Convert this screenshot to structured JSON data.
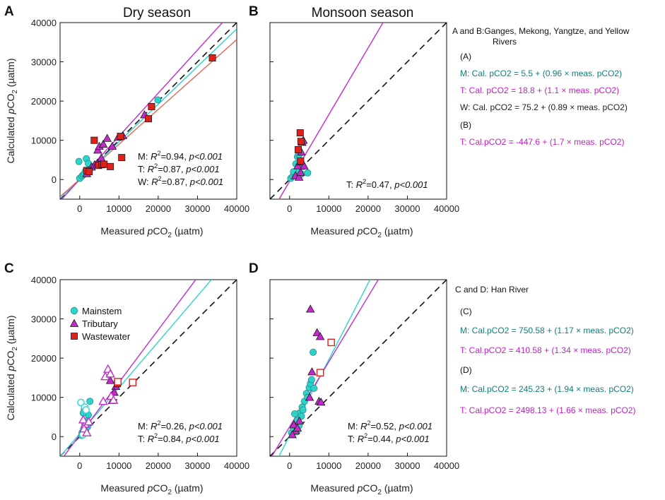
{
  "colors": {
    "mainstem": "#2dd4cc",
    "tributary": "#c32ccb",
    "wastewater": "#e0201b",
    "mainstem_text": "#0f7f77",
    "tributary_text": "#c21fc6",
    "waste_line": "#e06a5a",
    "one_to_one": "#111111"
  },
  "legend": {
    "mainstem": "Mainstem",
    "tributary": "Tributary",
    "wastewater": "Wastewater"
  },
  "chart_data": [
    {
      "id": "A",
      "type": "scatter",
      "panel_label": "A",
      "title": "Dry season",
      "xlabel": "Measured pCO2 (µatm)",
      "ylabel": "Calculated pCO2 (µatm)",
      "xlim": [
        -5000,
        40000
      ],
      "ylim": [
        -5000,
        40000
      ],
      "x_ticks": [
        "0",
        "10000",
        "20000",
        "30000",
        "40000"
      ],
      "y_ticks": [
        "0",
        "10000",
        "20000",
        "30000",
        "40000"
      ],
      "one_to_one": true,
      "regressions": [
        {
          "group": "mainstem",
          "intercept": 5.5,
          "slope": 0.96
        },
        {
          "group": "tributary",
          "intercept": 18.8,
          "slope": 1.1
        },
        {
          "group": "wastewater",
          "intercept": 75.2,
          "slope": 0.89
        }
      ],
      "stats": [
        {
          "group": "M",
          "r2": "0.94",
          "p": "p<0.001"
        },
        {
          "group": "T",
          "r2": "0.87",
          "p": "p<0.001"
        },
        {
          "group": "W",
          "r2": "0.87",
          "p": "p<0.001"
        }
      ],
      "series": [
        {
          "name": "Mainstem",
          "marker": "circle",
          "filled": true,
          "points": [
            [
              0,
              300
            ],
            [
              600,
              900
            ],
            [
              900,
              1200
            ],
            [
              1500,
              2200
            ],
            [
              2000,
              1700
            ],
            [
              2600,
              3000
            ],
            [
              1200,
              1500
            ],
            [
              -200,
              4600
            ],
            [
              1700,
              5300
            ],
            [
              2200,
              4100
            ],
            [
              19900,
              20300
            ],
            [
              3400,
              3300
            ]
          ]
        },
        {
          "name": "Tributary",
          "marker": "triangle",
          "filled": true,
          "points": [
            [
              3000,
              3200
            ],
            [
              3800,
              3800
            ],
            [
              4500,
              4200
            ],
            [
              4600,
              7500
            ],
            [
              5000,
              8500
            ],
            [
              5500,
              5500
            ],
            [
              6000,
              9000
            ],
            [
              7000,
              10500
            ],
            [
              8300,
              8500
            ],
            [
              9800,
              10800
            ],
            [
              11000,
              11200
            ],
            [
              16500,
              16500
            ],
            [
              1800,
              1500
            ]
          ]
        },
        {
          "name": "Wastewater",
          "marker": "square",
          "filled": true,
          "points": [
            [
              3700,
              10000
            ],
            [
              1800,
              2300
            ],
            [
              4800,
              3600
            ],
            [
              5700,
              3800
            ],
            [
              6200,
              3900
            ],
            [
              7800,
              3300
            ],
            [
              10400,
              11000
            ],
            [
              10700,
              5600
            ],
            [
              17500,
              15500
            ],
            [
              18300,
              18600
            ],
            [
              33800,
              31000
            ],
            [
              2400,
              2000
            ]
          ]
        }
      ]
    },
    {
      "id": "B",
      "type": "scatter",
      "panel_label": "B",
      "title": "Monsoon season",
      "xlabel": "Measured pCO2 (µatm)",
      "ylabel": "",
      "xlim": [
        -5000,
        40000
      ],
      "ylim": [
        -5000,
        40000
      ],
      "x_ticks": [
        "0",
        "10000",
        "20000",
        "30000",
        "40000"
      ],
      "y_ticks": [],
      "one_to_one": true,
      "regressions": [
        {
          "group": "tributary",
          "intercept": -447.6,
          "slope": 1.7
        }
      ],
      "stats": [
        {
          "group": "T",
          "r2": "0.47",
          "p": "p<0.001"
        }
      ],
      "series": [
        {
          "name": "Mainstem",
          "marker": "circle",
          "filled": true,
          "points": [
            [
              300,
              300
            ],
            [
              800,
              800
            ],
            [
              1400,
              1200
            ],
            [
              1900,
              2200
            ],
            [
              2000,
              5800
            ],
            [
              2400,
              6300
            ],
            [
              3000,
              1400
            ],
            [
              4600,
              1700
            ],
            [
              3400,
              3300
            ],
            [
              1000,
              2000
            ],
            [
              1600,
              4000
            ]
          ]
        },
        {
          "name": "Tributary",
          "marker": "triangle",
          "filled": true,
          "points": [
            [
              1500,
              1000
            ],
            [
              2100,
              3500
            ],
            [
              2600,
              4500
            ],
            [
              3000,
              7000
            ],
            [
              3200,
              9500
            ],
            [
              3500,
              10000
            ],
            [
              2400,
              600
            ],
            [
              3700,
              3500
            ],
            [
              2800,
              1800
            ]
          ]
        },
        {
          "name": "Wastewater",
          "marker": "square",
          "filled": true,
          "points": [
            [
              2700,
              11900
            ],
            [
              2900,
              9700
            ],
            [
              2200,
              7600
            ],
            [
              2800,
              4700
            ]
          ]
        }
      ]
    },
    {
      "id": "C",
      "type": "scatter",
      "panel_label": "C",
      "title": "",
      "xlabel": "Measured pCO2 (µatm)",
      "ylabel": "Calculated pCO2 (µatm)",
      "xlim": [
        -5000,
        40000
      ],
      "ylim": [
        -5000,
        40000
      ],
      "x_ticks": [
        "0",
        "10000",
        "20000",
        "30000",
        "40000"
      ],
      "y_ticks": [
        "0",
        "10000",
        "20000",
        "30000",
        "40000"
      ],
      "one_to_one": true,
      "legend_shown": true,
      "regressions": [
        {
          "group": "mainstem",
          "intercept": 750.58,
          "slope": 1.17
        },
        {
          "group": "tributary",
          "intercept": 410.58,
          "slope": 1.34
        }
      ],
      "stats": [
        {
          "group": "M",
          "r2": "0.26",
          "p": "p<0.001"
        },
        {
          "group": "T",
          "r2": "0.84",
          "p": "p<0.001"
        }
      ],
      "series": [
        {
          "name": "Mainstem",
          "marker": "circle",
          "filled": true,
          "points": [
            [
              600,
              1000
            ],
            [
              1000,
              2000
            ],
            [
              1300,
              3000
            ],
            [
              1800,
              4000
            ],
            [
              2200,
              5500
            ],
            [
              1200,
              7000
            ],
            [
              2600,
              9000
            ],
            [
              900,
              6000
            ],
            [
              1500,
              1500
            ],
            [
              500,
              300
            ],
            [
              2000,
              2500
            ]
          ]
        },
        {
          "name": "Mainstem (open)",
          "marker": "circle",
          "filled": false,
          "points": [
            [
              300,
              8700
            ],
            [
              1300,
              7500
            ],
            [
              800,
              500
            ],
            [
              1600,
              6800
            ]
          ]
        },
        {
          "name": "Tributary",
          "marker": "triangle",
          "filled": true,
          "points": [
            [
              7800,
              14300
            ],
            [
              8300,
              9200
            ],
            [
              9200,
              12800
            ],
            [
              8800,
              11300
            ]
          ]
        },
        {
          "name": "Tributary (open)",
          "marker": "triangle",
          "filled": false,
          "points": [
            [
              6500,
              15300
            ],
            [
              7200,
              17200
            ],
            [
              7800,
              16000
            ],
            [
              8000,
              10300
            ],
            [
              8600,
              9300
            ],
            [
              6000,
              9000
            ],
            [
              1400,
              3200
            ],
            [
              1100,
              2000
            ],
            [
              900,
              4300
            ],
            [
              1800,
              1000
            ],
            [
              2300,
              3800
            ]
          ]
        },
        {
          "name": "Wastewater",
          "marker": "square",
          "filled": true,
          "points": [
            [
              9600,
              13500
            ]
          ]
        },
        {
          "name": "Wastewater (open)",
          "marker": "square",
          "filled": false,
          "points": [
            [
              9700,
              14000
            ],
            [
              13500,
              13800
            ]
          ]
        }
      ]
    },
    {
      "id": "D",
      "type": "scatter",
      "panel_label": "D",
      "title": "",
      "xlabel": "Measured pCO2 (µatm)",
      "ylabel": "",
      "xlim": [
        -5000,
        40000
      ],
      "ylim": [
        -5000,
        40000
      ],
      "x_ticks": [
        "0",
        "10000",
        "20000",
        "30000",
        "40000"
      ],
      "y_ticks": [],
      "one_to_one": true,
      "regressions": [
        {
          "group": "mainstem",
          "intercept": 245.23,
          "slope": 1.94
        },
        {
          "group": "tributary",
          "intercept": 2498.13,
          "slope": 1.66
        }
      ],
      "stats": [
        {
          "group": "M",
          "r2": "0.52",
          "p": "p<0.001"
        },
        {
          "group": "T",
          "r2": "0.44",
          "p": "p<0.001"
        }
      ],
      "series": [
        {
          "name": "Mainstem",
          "marker": "circle",
          "filled": true,
          "points": [
            [
              500,
              1000
            ],
            [
              1000,
              2000
            ],
            [
              1500,
              3000
            ],
            [
              2000,
              4200
            ],
            [
              2500,
              6000
            ],
            [
              3200,
              7500
            ],
            [
              3800,
              9000
            ],
            [
              4300,
              11000
            ],
            [
              5000,
              12500
            ],
            [
              5300,
              13500
            ],
            [
              5600,
              14500
            ],
            [
              6200,
              12300
            ],
            [
              6000,
              21500
            ],
            [
              4600,
              10000
            ],
            [
              3000,
              5200
            ],
            [
              1300,
              5800
            ],
            [
              2400,
              2800
            ],
            [
              3400,
              6800
            ],
            [
              1800,
              1200
            ]
          ]
        },
        {
          "name": "Tributary",
          "marker": "triangle",
          "filled": true,
          "points": [
            [
              5300,
              32500
            ],
            [
              7000,
              26500
            ],
            [
              7800,
              25500
            ],
            [
              5700,
              16500
            ],
            [
              5100,
              10000
            ],
            [
              7500,
              9000
            ],
            [
              8000,
              8800
            ],
            [
              1500,
              1500
            ],
            [
              1100,
              3000
            ],
            [
              2000,
              2200
            ],
            [
              700,
              500
            ],
            [
              2500,
              4000
            ]
          ]
        },
        {
          "name": "Wastewater (open)",
          "marker": "square",
          "filled": false,
          "points": [
            [
              10600,
              24000
            ],
            [
              7800,
              16300
            ]
          ]
        }
      ]
    }
  ],
  "annotations": {
    "ab_header_line1": "A and B:Ganges, Mekong, Yangtze, and  Yellow",
    "ab_header_line2": "Rivers",
    "ab_label_a": "(A)",
    "ab_eq_m": "M: Cal. pCO2 = 5.5 + (0.96 × meas. pCO2)",
    "ab_eq_t": "T:  Cal. pCO2 = 18.8 + (1.1 × meas. pCO2)",
    "ab_eq_w": "W: Cal. pCO2 = 75.2 + (0.89 × meas. pCO2)",
    "ab_label_b": "(B)",
    "ab_eq_tb": "T: Cal.pCO2 = -447.6 + (1.7 × meas. pCO2)",
    "cd_header": "C and D: Han River",
    "cd_label_c": "(C)",
    "cd_eq_m": "M: Cal.pCO2 = 750.58 + (1.17 × meas. pCO2)",
    "cd_eq_t": "T: Cal.pCO2 = 410.58 + (1.34 × meas. pCO2)",
    "cd_label_d": "(D)",
    "cd_eq_md": "M: Cal.pCO2 = 245.23 + (1.94 × meas. pCO2)",
    "cd_eq_td": "T: Cal.pCO2 = 2498.13 + (1.66 × meas. pCO2)"
  }
}
